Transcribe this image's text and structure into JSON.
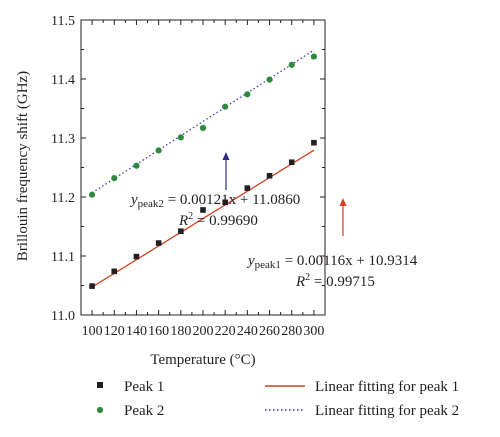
{
  "chart_data": {
    "type": "scatter",
    "xlabel": "Temperature (°C)",
    "ylabel": "Brillouin frequency shift (GHz)",
    "xlim": [
      90,
      310
    ],
    "ylim": [
      11.0,
      11.5
    ],
    "xticks": [
      100,
      120,
      140,
      160,
      180,
      200,
      220,
      240,
      260,
      280,
      300
    ],
    "yticks": [
      11.0,
      11.1,
      11.2,
      11.3,
      11.4,
      11.5
    ],
    "grid": false,
    "x": [
      100,
      120,
      140,
      160,
      180,
      200,
      220,
      240,
      260,
      280,
      300
    ],
    "series": [
      {
        "name": "Peak 1",
        "marker": "square",
        "color": "#231f20",
        "values": [
          11.049,
          11.074,
          11.099,
          11.122,
          11.142,
          11.178,
          11.191,
          11.215,
          11.236,
          11.259,
          11.292
        ]
      },
      {
        "name": "Peak 2",
        "marker": "circle",
        "color": "#2e8b3e",
        "values": [
          11.204,
          11.232,
          11.253,
          11.279,
          11.301,
          11.317,
          11.353,
          11.374,
          11.399,
          11.424,
          11.438
        ]
      }
    ],
    "fits": [
      {
        "name": "Linear fitting for peak 1",
        "color": "#d63e1e",
        "style": "solid",
        "slope": 0.00116,
        "intercept": 10.9314
      },
      {
        "name": "Linear fitting for peak 2",
        "color": "#3b3bbd",
        "style": "dotted",
        "slope": 0.00121,
        "intercept": 11.086
      }
    ],
    "annotations": [
      {
        "y_sub": "peak2",
        "eq_text": " = 0.00121x + 11.0860",
        "r2_value": " = 0.99690",
        "arrow_color": "#2b2b8f"
      },
      {
        "y_sub": "peak1",
        "eq_text": " = 0.00116x + 10.9314",
        "r2_value": " = 0.99715",
        "arrow_color": "#d63e1e"
      }
    ],
    "legend_placement": "bottom"
  }
}
